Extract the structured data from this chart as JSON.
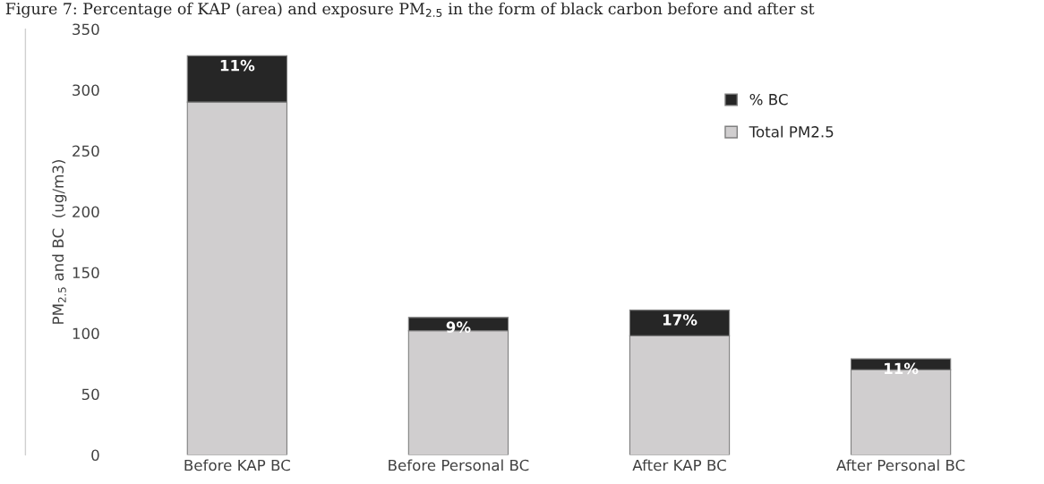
{
  "chart_data": {
    "type": "bar",
    "title": "Figure 7: Percentage of KAP (area) and exposure PM$_{2.5}$ in the form of black carbon before and after st",
    "ylabel": "PM$_{2.5}$ and BC  (ug/m3)",
    "categories": [
      "Before KAP BC",
      "Before Personal BC",
      "After KAP BC",
      "After Personal BC"
    ],
    "stacked": true,
    "series": [
      {
        "name": "Total PM2.5",
        "color": "#d0cecf",
        "values": [
          290,
          102,
          98,
          70
        ]
      },
      {
        "name": "% BC",
        "color": "#262626",
        "values": [
          38,
          11,
          21,
          9
        ]
      }
    ],
    "annotations": [
      {
        "text": "11%",
        "x": "Before KAP BC",
        "y": 328
      },
      {
        "text": "9%",
        "x": "Before Personal BC",
        "y": 113
      },
      {
        "text": "17%",
        "x": "After KAP BC",
        "y": 119
      },
      {
        "text": "11%",
        "x": "After Personal BC",
        "y": 79
      }
    ],
    "ylim": [
      0,
      350
    ],
    "yticks": [
      0,
      50,
      100,
      150,
      200,
      250,
      300,
      350
    ],
    "grid": false,
    "legend": "top right"
  }
}
